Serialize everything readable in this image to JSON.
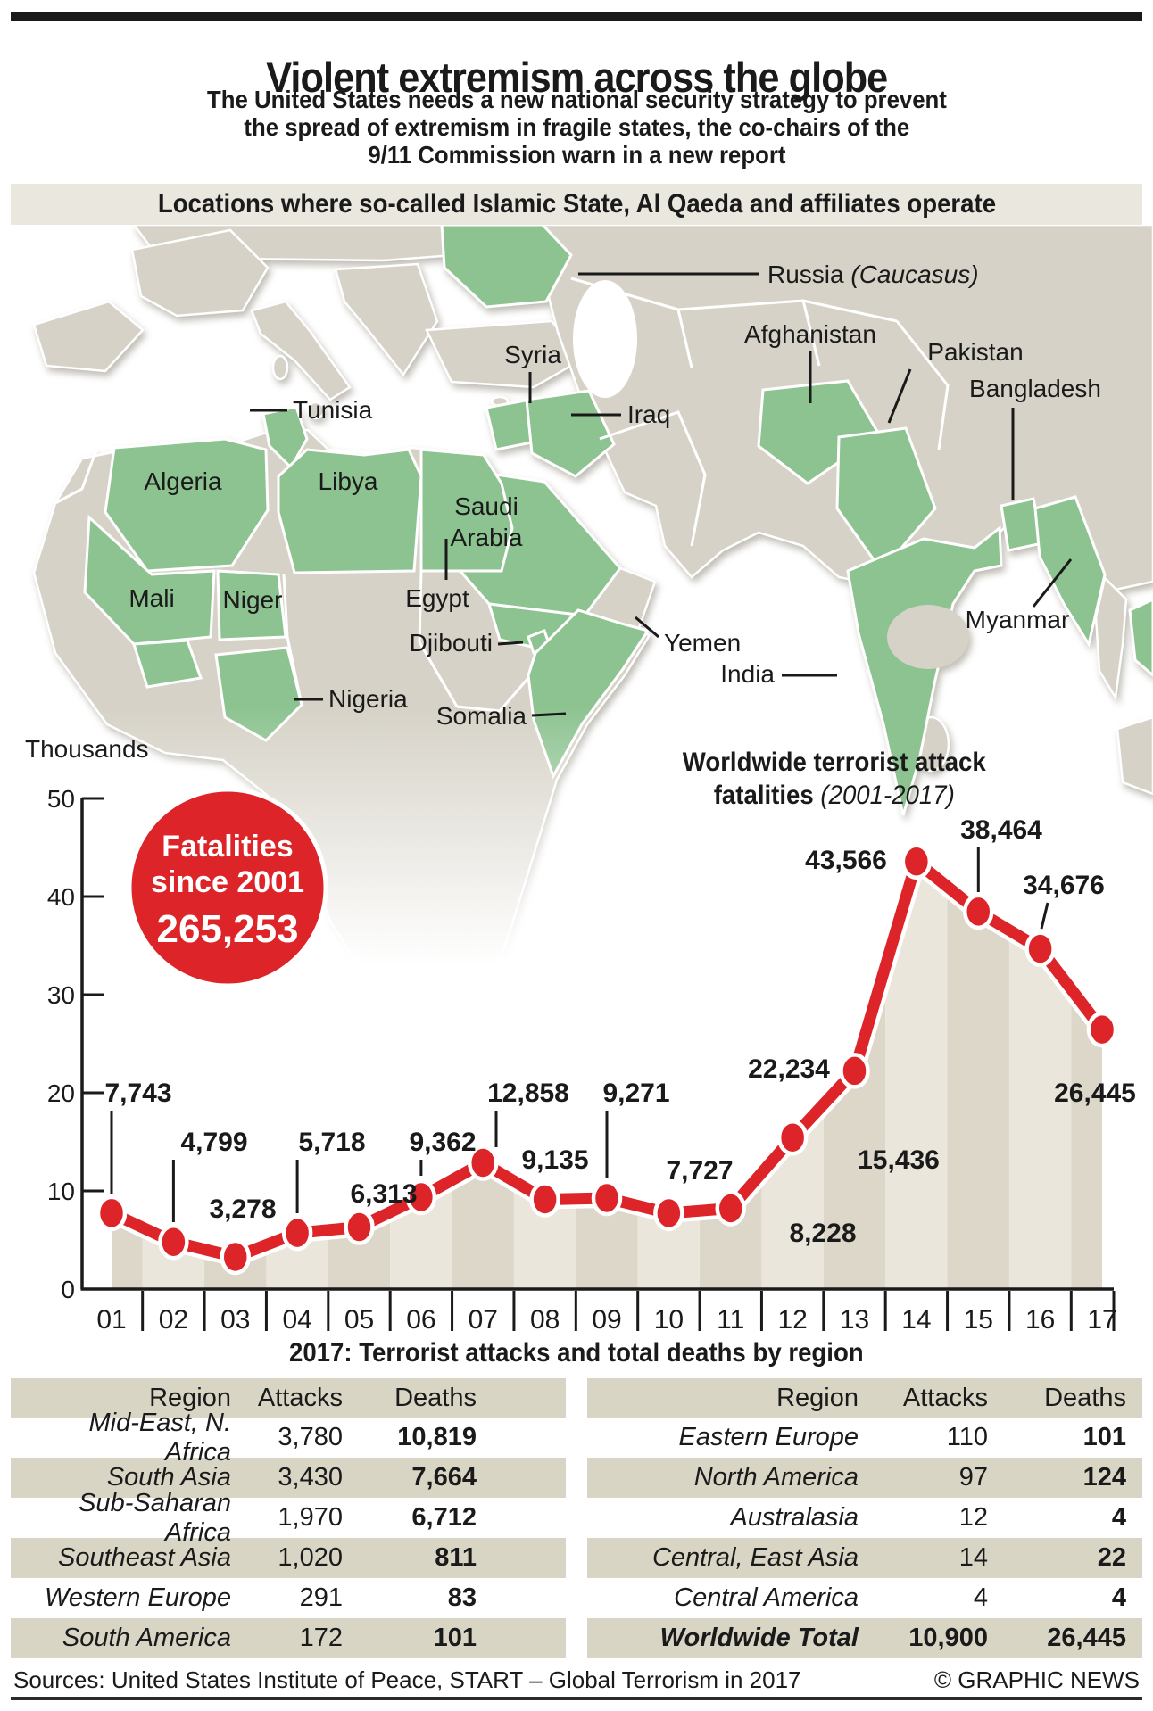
{
  "header": {
    "title": "Violent extremism across the globe",
    "subtitle_lines": [
      "The United States needs a new national security strategy to prevent",
      "the spread of extremism in fragile states, the co-chairs of the",
      "9/11 Commission warn in a new report"
    ],
    "banner": "Locations where so-called Islamic State, Al Qaeda and affiliates operate"
  },
  "map": {
    "labels": {
      "russia": "Russia ",
      "russia_suffix": "(Caucasus)",
      "afghanistan": "Afghanistan",
      "pakistan": "Pakistan",
      "bangladesh": "Bangladesh",
      "syria": "Syria",
      "iraq": "Iraq",
      "tunisia": "Tunisia",
      "algeria": "Algeria",
      "libya": "Libya",
      "saudi_line1": "Saudi",
      "saudi_line2": "Arabia",
      "egypt": "Egypt",
      "mali": "Mali",
      "niger": "Niger",
      "nigeria": "Nigeria",
      "djibouti": "Djibouti",
      "somalia": "Somalia",
      "yemen": "Yemen",
      "india": "India",
      "myanmar": "Myanmar"
    },
    "colors": {
      "highlight": "#8dc391",
      "land": "#d6d2c7"
    }
  },
  "chart_data": {
    "type": "line",
    "title_line1": "Worldwide terrorist attack",
    "title_line2_bold": "fatalities",
    "title_line2_italic": "(2001-2017)",
    "ylabel_unit": "Thousands",
    "ylim": [
      0,
      50000
    ],
    "y_ticks": [
      "50",
      "40",
      "30",
      "20",
      "10",
      "0"
    ],
    "categories": [
      "01",
      "02",
      "03",
      "04",
      "05",
      "06",
      "07",
      "08",
      "09",
      "10",
      "11",
      "12",
      "13",
      "14",
      "15",
      "16",
      "17"
    ],
    "values": [
      7743,
      4799,
      3278,
      5718,
      6313,
      9362,
      12858,
      9135,
      9271,
      7727,
      8228,
      15436,
      22234,
      43566,
      38464,
      34676,
      26445
    ],
    "value_labels": [
      "7,743",
      "4,799",
      "3,278",
      "5,718",
      "6,313",
      "9,362",
      "12,858",
      "9,135",
      "9,271",
      "7,727",
      "8,228",
      "15,436",
      "22,234",
      "43,566",
      "38,464",
      "34,676",
      "26,445"
    ],
    "badge": {
      "line1": "Fatalities",
      "line2": "since 2001",
      "value": "265,253"
    },
    "line_color": "#dd2428",
    "band_colors": [
      "#dcd7c8",
      "#eae6db"
    ]
  },
  "tables": {
    "title": "2017: Terrorist attacks and total deaths by region",
    "headers": {
      "region": "Region",
      "attacks": "Attacks",
      "deaths": "Deaths"
    },
    "left": {
      "rows": [
        {
          "region": "Mid-East, N. Africa",
          "attacks": "3,780",
          "deaths": "10,819"
        },
        {
          "region": "South Asia",
          "attacks": "3,430",
          "deaths": "7,664"
        },
        {
          "region": "Sub-Saharan Africa",
          "attacks": "1,970",
          "deaths": "6,712"
        },
        {
          "region": "Southeast Asia",
          "attacks": "1,020",
          "deaths": "811"
        },
        {
          "region": "Western Europe",
          "attacks": "291",
          "deaths": "83"
        },
        {
          "region": "South America",
          "attacks": "172",
          "deaths": "101"
        }
      ]
    },
    "right": {
      "rows": [
        {
          "region": "Eastern Europe",
          "attacks": "110",
          "deaths": "101"
        },
        {
          "region": "North America",
          "attacks": "97",
          "deaths": "124"
        },
        {
          "region": "Australasia",
          "attacks": "12",
          "deaths": "4"
        },
        {
          "region": "Central, East Asia",
          "attacks": "14",
          "deaths": "22"
        },
        {
          "region": "Central America",
          "attacks": "4",
          "deaths": "4"
        },
        {
          "region": "Worldwide Total",
          "attacks": "10,900",
          "deaths": "26,445"
        }
      ]
    }
  },
  "footer": {
    "sources": "Sources: United States Institute of Peace, START – Global Terrorism in 2017",
    "credit": "© GRAPHIC NEWS"
  }
}
